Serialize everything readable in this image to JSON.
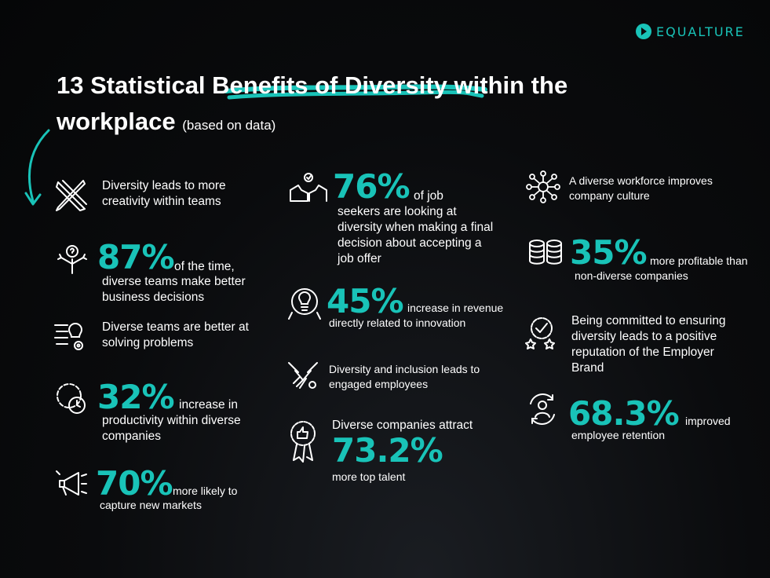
{
  "brand": {
    "name": "EQUALTURE",
    "accent": "#19c3b8"
  },
  "title": {
    "part1": "13 Statistical ",
    "highlight": "Benefits of Diversity",
    "part2": " within the workplace",
    "subtitle": "(based on data)"
  },
  "items": {
    "creativity": {
      "text": "Diversity leads to more creativity within teams",
      "icon": "pencil-ruler-icon"
    },
    "decisions": {
      "stat": "87%",
      "lead": "of the time,",
      "rest": "diverse teams make better business decisions",
      "icon": "decision-arrows-icon"
    },
    "problems": {
      "text": "Diverse teams are better at solving problems",
      "icon": "lightbulb-gear-icon"
    },
    "productivity": {
      "stat": "32%",
      "lead": "increase in",
      "rest": "productivity within diverse companies",
      "icon": "clock-gear-icon"
    },
    "markets": {
      "stat": "70%",
      "lead": "more likely to",
      "rest": "capture new markets",
      "icon": "megaphone-icon"
    },
    "job_seekers": {
      "stat": "76%",
      "lead": "of job",
      "rest": "seekers are looking at diversity when making a final decision about accepting a job offer",
      "icon": "thumbs-up-hands-icon"
    },
    "revenue": {
      "stat": "45%",
      "lead": "increase in revenue",
      "rest": "directly related to innovation",
      "icon": "innovation-bulb-icon"
    },
    "engaged": {
      "text": "Diversity and inclusion leads to engaged employees",
      "icon": "handshake-icon"
    },
    "talent": {
      "lead": "Diverse companies attract",
      "stat": "73.2%",
      "rest": "more top talent",
      "icon": "award-badge-icon"
    },
    "culture": {
      "text": "A diverse workforce improves company culture",
      "icon": "team-network-icon"
    },
    "profitable": {
      "stat": "35%",
      "lead": "more profitable than",
      "rest": "non-diverse companies",
      "icon": "coins-icon"
    },
    "reputation": {
      "text": "Being committed to ensuring diversity leads to a positive reputation of the Employer Brand",
      "icon": "check-stars-icon"
    },
    "retention": {
      "stat": "68.3%",
      "lead": "improved",
      "rest": "employee retention",
      "icon": "employee-cycle-icon"
    }
  }
}
